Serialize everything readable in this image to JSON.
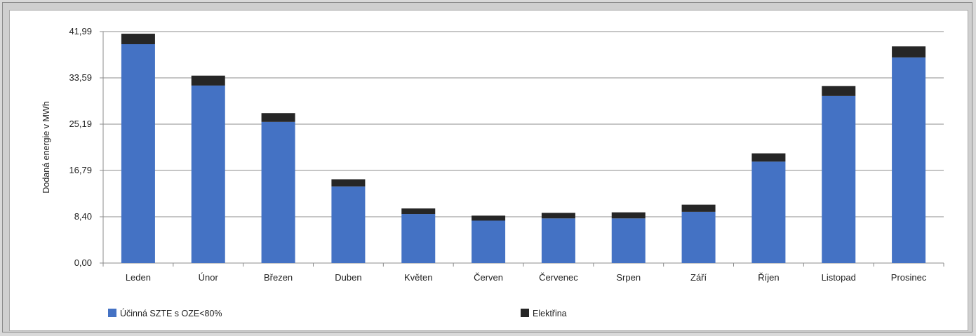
{
  "chart_data": {
    "type": "bar",
    "stacked": true,
    "ylabel": "Dodaná energie v MWh",
    "yticks": [
      "0,00",
      "8,40",
      "16,79",
      "25,19",
      "33,59",
      "41,99"
    ],
    "ylim": [
      0,
      41.99
    ],
    "categories": [
      "Leden",
      "Únor",
      "Březen",
      "Duben",
      "Květen",
      "Červen",
      "Červenec",
      "Srpen",
      "Září",
      "Říjen",
      "Listopad",
      "Prosinec"
    ],
    "series": [
      {
        "name": "Účinná SZTE s OZE<80%",
        "color": "#4472c4",
        "values": [
          39.7,
          32.2,
          25.6,
          13.9,
          8.9,
          7.7,
          8.1,
          8.1,
          9.3,
          18.4,
          30.3,
          37.3
        ]
      },
      {
        "name": "Elektřina",
        "color": "#262626",
        "values": [
          1.9,
          1.8,
          1.6,
          1.3,
          1.0,
          0.9,
          1.0,
          1.1,
          1.3,
          1.5,
          1.8,
          2.0
        ]
      }
    ],
    "grid": true,
    "legend": "bottom"
  }
}
